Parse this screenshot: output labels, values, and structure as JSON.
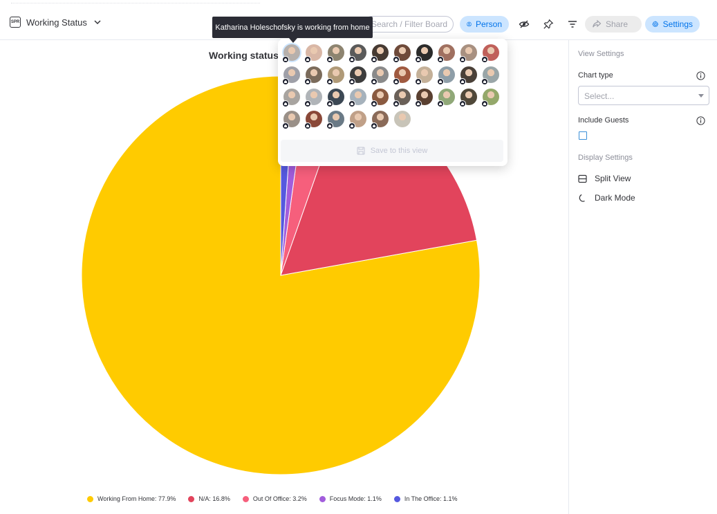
{
  "header": {
    "view_icon_label": "SPR",
    "view_name": "Working Status",
    "search_placeholder": "Search / Filter Board",
    "person_label": "Person",
    "share_label": "Share",
    "settings_label": "Settings"
  },
  "tooltip": {
    "text": "Katharina Holeschofsky is working from home"
  },
  "people_filter": {
    "avatar_colors": [
      "#b6b0ac",
      "#d9b7a6",
      "#8d8470",
      "#5a5a5a",
      "#463a32",
      "#6e4a3a",
      "#2b2b2b",
      "#a07060",
      "#a89080",
      "#c0605a",
      "#9fa0a8",
      "#7b6b5b",
      "#b09a78",
      "#3d3d3d",
      "#8a8a8a",
      "#a05a40",
      "#c4b098",
      "#8e9ea8",
      "#4a4038",
      "#9aa6a8",
      "#a8a4a0",
      "#b0b4b8",
      "#3c4854",
      "#a6b2bc",
      "#8a5a40",
      "#6a6058",
      "#5a4030",
      "#90a878",
      "#50483a",
      "#94a86a",
      "#9a9088",
      "#8a4838",
      "#6a7a86",
      "#c0a088",
      "#8a6a58",
      "#c8c4b8"
    ],
    "save_label": "Save to this view"
  },
  "chart_data": {
    "type": "pie",
    "title": "Working status",
    "series": [
      {
        "name": "Working From Home",
        "value": 77.9,
        "color": "#ffcb00"
      },
      {
        "name": "N/A",
        "value": 16.8,
        "color": "#e2445c"
      },
      {
        "name": "Out Of Office",
        "value": 3.2,
        "color": "#f65f7c"
      },
      {
        "name": "Focus Mode",
        "value": 1.1,
        "color": "#a25ddc"
      },
      {
        "name": "In The Office",
        "value": 1.1,
        "color": "#5559df"
      }
    ],
    "legend_position": "bottom",
    "legend_labels": [
      "Working From Home: 77.9%",
      "N/A: 16.8%",
      "Out Of Office: 3.2%",
      "Focus Mode: 1.1%",
      "In The Office: 1.1%"
    ]
  },
  "sidebar": {
    "view_settings_heading": "View Settings",
    "chart_type_label": "Chart type",
    "chart_type_placeholder": "Select...",
    "include_guests_label": "Include Guests",
    "display_settings_heading": "Display Settings",
    "split_view_label": "Split View",
    "dark_mode_label": "Dark Mode"
  }
}
